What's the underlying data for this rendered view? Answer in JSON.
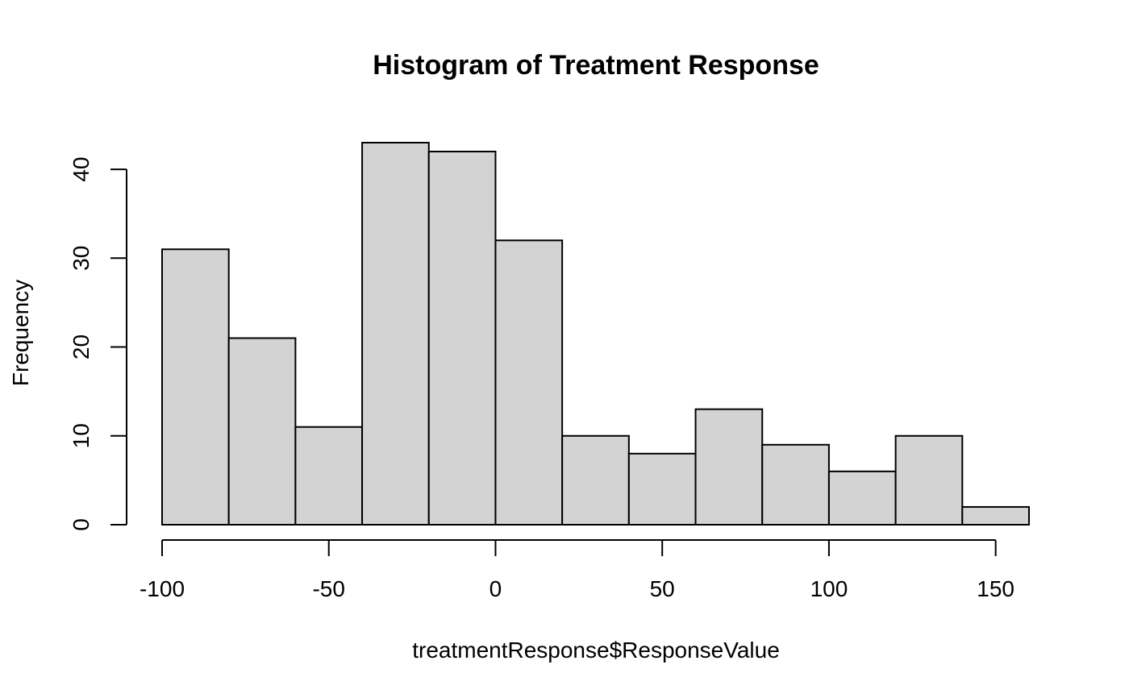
{
  "chart_data": {
    "type": "bar",
    "title": "Histogram of Treatment Response",
    "xlabel": "treatmentResponse$ResponseValue",
    "ylabel": "Frequency",
    "bins": [
      {
        "from": -100,
        "to": -80,
        "count": 31
      },
      {
        "from": -80,
        "to": -60,
        "count": 21
      },
      {
        "from": -60,
        "to": -40,
        "count": 11
      },
      {
        "from": -40,
        "to": -20,
        "count": 43
      },
      {
        "from": -20,
        "to": 0,
        "count": 42
      },
      {
        "from": 0,
        "to": 20,
        "count": 32
      },
      {
        "from": 20,
        "to": 40,
        "count": 10
      },
      {
        "from": 40,
        "to": 60,
        "count": 8
      },
      {
        "from": 60,
        "to": 80,
        "count": 13
      },
      {
        "from": 80,
        "to": 100,
        "count": 9
      },
      {
        "from": 100,
        "to": 120,
        "count": 6
      },
      {
        "from": 120,
        "to": 140,
        "count": 10
      },
      {
        "from": 140,
        "to": 160,
        "count": 2
      }
    ],
    "xlim": [
      -100,
      160
    ],
    "ylim": [
      0,
      43
    ],
    "x_ticks": [
      -100,
      -50,
      0,
      50,
      100,
      150
    ],
    "y_ticks": [
      0,
      10,
      20,
      30,
      40
    ],
    "x_tick_labels": [
      "-100",
      "-50",
      "0",
      "50",
      "100",
      "150"
    ],
    "y_tick_labels": [
      "0",
      "10",
      "20",
      "30",
      "40"
    ],
    "grid": false,
    "bar_fill": "#d3d3d3",
    "bar_stroke": "#000000"
  }
}
